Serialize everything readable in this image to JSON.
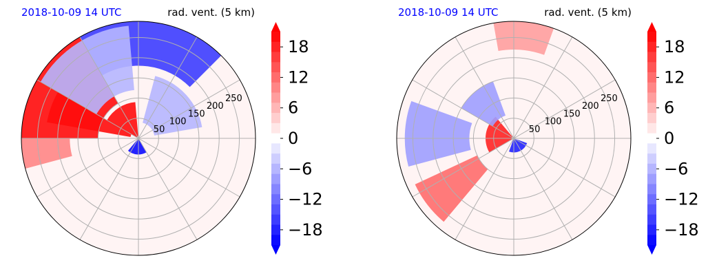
{
  "figure": {
    "colors": {
      "background": "#ffffff",
      "grid": "#b0b0b0",
      "date_title": "#0000ff",
      "positive": "#ff0000",
      "negative": "#0000ff",
      "near_zero": "#fff4f4"
    },
    "colorbar": {
      "ticks": [
        "18",
        "12",
        "6",
        "0",
        "−6",
        "−12",
        "−18"
      ],
      "range": [
        -21,
        21
      ],
      "levels": 21,
      "extend": "both",
      "colormap": "blue-white-red"
    }
  },
  "chart_data": [
    {
      "type": "heatmap",
      "projection": "polar",
      "date_title": "2018-10-09 14 UTC",
      "title": "rad. vent. (5 km)",
      "radial_ticks": [
        "50",
        "100",
        "150",
        "200",
        "250"
      ],
      "radial_values": [
        50,
        100,
        150,
        200,
        250
      ],
      "radial_max": 290,
      "angular_grid_deg": 30,
      "value_range": [
        -21,
        21
      ],
      "regions": [
        {
          "sign": "positive",
          "magnitude": 20,
          "range_km": [
            100,
            290
          ],
          "azimuth_deg": [
            270,
            330
          ]
        },
        {
          "sign": "positive",
          "magnitude": 20,
          "range_km": [
            20,
            230
          ],
          "azimuth_deg": [
            280,
            300
          ]
        },
        {
          "sign": "positive",
          "magnitude": 20,
          "range_km": [
            5,
            90
          ],
          "azimuth_deg": [
            300,
            355
          ]
        },
        {
          "sign": "negative",
          "magnitude": 20,
          "range_km": [
            0,
            40
          ],
          "azimuth_deg": [
            150,
            220
          ]
        },
        {
          "sign": "negative",
          "magnitude": 16,
          "range_km": [
            180,
            290
          ],
          "azimuth_deg": [
            330,
            45
          ]
        },
        {
          "sign": "negative",
          "magnitude": 6,
          "range_km": [
            120,
            280
          ],
          "azimuth_deg": [
            300,
            355
          ]
        },
        {
          "sign": "positive",
          "magnitude": 10,
          "range_km": [
            170,
            290
          ],
          "azimuth_deg": [
            255,
            270
          ]
        },
        {
          "sign": "negative",
          "magnitude": 6,
          "range_km": [
            40,
            160
          ],
          "azimuth_deg": [
            15,
            80
          ]
        }
      ]
    },
    {
      "type": "heatmap",
      "projection": "polar",
      "date_title": "2018-10-09 14 UTC",
      "title": "rad. vent. (5 km)",
      "radial_ticks": [
        "50",
        "100",
        "150",
        "200",
        "250"
      ],
      "radial_values": [
        50,
        100,
        150,
        200,
        250
      ],
      "radial_max": 290,
      "angular_grid_deg": 30,
      "value_range": [
        -21,
        21
      ],
      "regions": [
        {
          "sign": "positive",
          "magnitude": 18,
          "range_km": [
            5,
            70
          ],
          "azimuth_deg": [
            240,
            320
          ]
        },
        {
          "sign": "negative",
          "magnitude": 18,
          "range_km": [
            0,
            35
          ],
          "azimuth_deg": [
            110,
            200
          ]
        },
        {
          "sign": "positive",
          "magnitude": 12,
          "range_km": [
            100,
            270
          ],
          "azimuth_deg": [
            220,
            245
          ]
        },
        {
          "sign": "negative",
          "magnitude": 8,
          "range_km": [
            110,
            270
          ],
          "azimuth_deg": [
            255,
            290
          ]
        },
        {
          "sign": "positive",
          "magnitude": 8,
          "range_km": [
            220,
            290
          ],
          "azimuth_deg": [
            350,
            20
          ]
        },
        {
          "sign": "negative",
          "magnitude": 8,
          "range_km": [
            60,
            150
          ],
          "azimuth_deg": [
            300,
            340
          ]
        }
      ]
    }
  ]
}
